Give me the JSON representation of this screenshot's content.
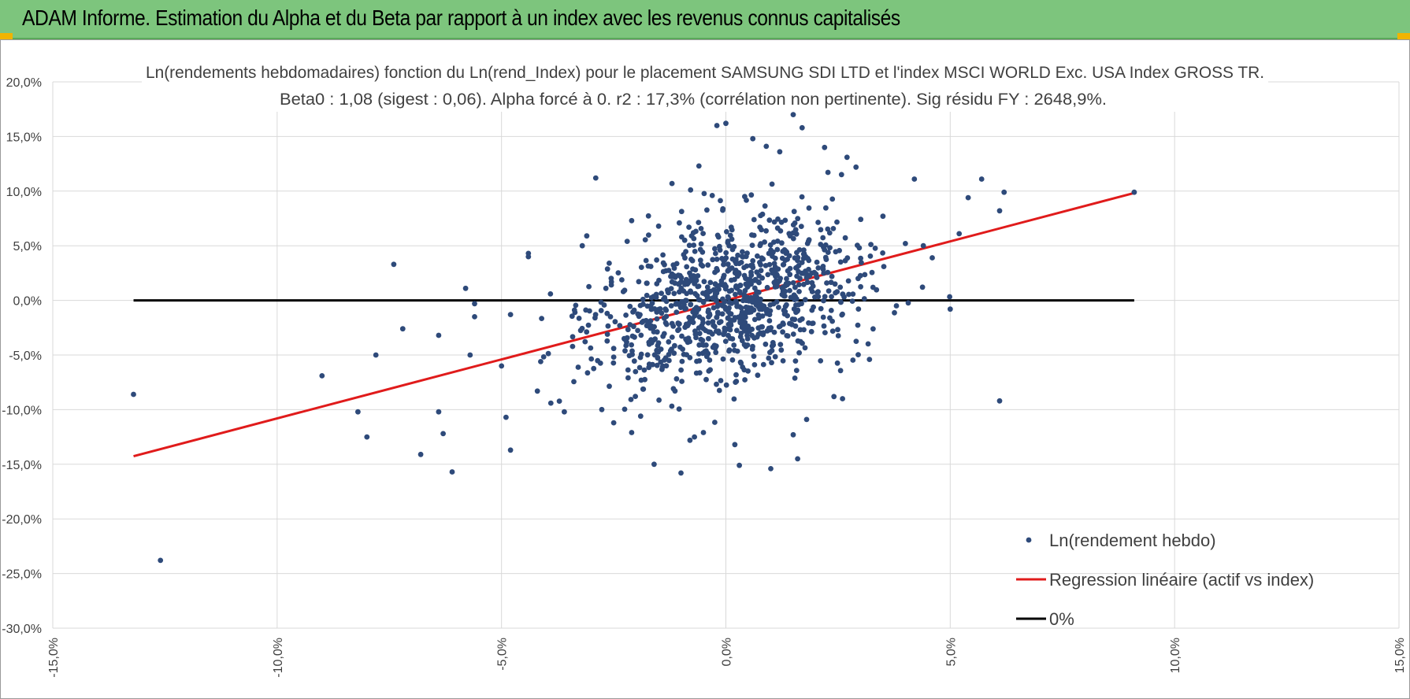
{
  "header": {
    "title": "ADAM Informe. Estimation du Alpha et du Beta par rapport à un index avec les revenus connus capitalisés"
  },
  "colors": {
    "header_bg": "#7dc57d",
    "points": "#2e4a7a",
    "regression": "#e01b1b",
    "zero_line": "#000000",
    "grid": "#d9d9d9"
  },
  "chart_data": {
    "type": "scatter",
    "title": "Ln(rendements hebdomadaires) fonction du Ln(rend_Index) pour le placement SAMSUNG SDI LTD et l'index MSCI WORLD Exc. USA Index GROSS TR.",
    "subtitle": "Beta0 : 1,08 (sigest : 0,06).  Alpha forcé à 0. r2 : 17,3% (corrélation non pertinente). Sig résidu FY : 2648,9%.",
    "xlim": [
      -15,
      15
    ],
    "ylim": [
      -30,
      20
    ],
    "x_ticks": [
      "-15,0%",
      "-10,0%",
      "-5,0%",
      "0,0%",
      "5,0%",
      "10,0%",
      "15,0%"
    ],
    "y_ticks": [
      "20,0%",
      "15,0%",
      "10,0%",
      "5,0%",
      "0,0%",
      "-5,0%",
      "-10,0%",
      "-15,0%",
      "-20,0%",
      "-25,0%",
      "-30,0%"
    ],
    "grid": true,
    "legend_position": "bottom-right",
    "series": [
      {
        "name": "Ln(rendement hebdo)",
        "kind": "points",
        "color": "#2e4a7a",
        "points": [
          [
            -13.2,
            -8.6
          ],
          [
            -12.6,
            -23.8
          ],
          [
            -9.0,
            -6.9
          ],
          [
            -8.2,
            -10.2
          ],
          [
            -8.0,
            -12.5
          ],
          [
            -7.8,
            -5.0
          ],
          [
            -7.4,
            3.3
          ],
          [
            -7.2,
            -2.6
          ],
          [
            -6.8,
            -14.1
          ],
          [
            -6.4,
            -3.2
          ],
          [
            -6.4,
            -10.2
          ],
          [
            -6.3,
            -12.2
          ],
          [
            -6.1,
            -15.7
          ],
          [
            -5.8,
            1.1
          ],
          [
            -5.7,
            -5.0
          ],
          [
            -5.6,
            -0.3
          ],
          [
            -5.6,
            -1.5
          ],
          [
            -5.0,
            -6.0
          ],
          [
            -4.9,
            -10.7
          ],
          [
            -4.8,
            -13.7
          ],
          [
            -4.8,
            -1.3
          ],
          [
            -4.4,
            4.0
          ],
          [
            -4.4,
            4.3
          ],
          [
            -3.2,
            5.0
          ],
          [
            -2.9,
            11.2
          ],
          [
            -2.6,
            3.4
          ],
          [
            -2.1,
            7.3
          ],
          [
            -1.6,
            -15.0
          ],
          [
            -1.2,
            10.7
          ],
          [
            -1.0,
            -15.8
          ],
          [
            -0.6,
            12.3
          ],
          [
            -0.2,
            16.0
          ],
          [
            0.0,
            16.2
          ],
          [
            0.6,
            14.8
          ],
          [
            0.9,
            14.1
          ],
          [
            1.2,
            13.6
          ],
          [
            1.5,
            17.0
          ],
          [
            1.7,
            15.8
          ],
          [
            2.2,
            14.0
          ],
          [
            2.7,
            13.1
          ],
          [
            2.9,
            12.2
          ],
          [
            3.2,
            -5.4
          ],
          [
            4.2,
            11.1
          ],
          [
            4.4,
            5.0
          ],
          [
            4.6,
            3.9
          ],
          [
            5.0,
            -0.8
          ],
          [
            5.2,
            6.1
          ],
          [
            5.4,
            9.4
          ],
          [
            5.7,
            11.1
          ],
          [
            6.1,
            8.2
          ],
          [
            6.2,
            9.9
          ],
          [
            6.1,
            -9.2
          ],
          [
            9.1,
            9.9
          ],
          [
            1.0,
            -15.4
          ],
          [
            0.3,
            -15.1
          ],
          [
            -0.7,
            -12.5
          ],
          [
            0.2,
            -13.2
          ],
          [
            1.5,
            -12.3
          ],
          [
            1.8,
            -10.9
          ],
          [
            1.6,
            -14.5
          ],
          [
            -2.5,
            -11.2
          ],
          [
            -1.9,
            -10.6
          ],
          [
            -2.1,
            -12.1
          ],
          [
            2.6,
            -9.0
          ],
          [
            -3.6,
            -10.2
          ],
          [
            -3.9,
            -9.4
          ],
          [
            -4.2,
            -8.3
          ],
          [
            3.8,
            -0.5
          ],
          [
            4.0,
            5.2
          ],
          [
            3.5,
            7.7
          ],
          [
            -3.1,
            5.9
          ],
          [
            -2.2,
            5.4
          ],
          [
            -0.8,
            -12.8
          ],
          [
            -0.5,
            -12.1
          ]
        ]
      },
      {
        "name": "Regression linéaire (actif vs index)",
        "kind": "line",
        "color": "#e01b1b",
        "x": [
          -13.2,
          9.1
        ],
        "y": [
          -14.26,
          9.83
        ]
      },
      {
        "name": "0%",
        "kind": "line",
        "color": "#000000",
        "x": [
          -13.2,
          9.1
        ],
        "y": [
          0,
          0
        ]
      }
    ]
  }
}
